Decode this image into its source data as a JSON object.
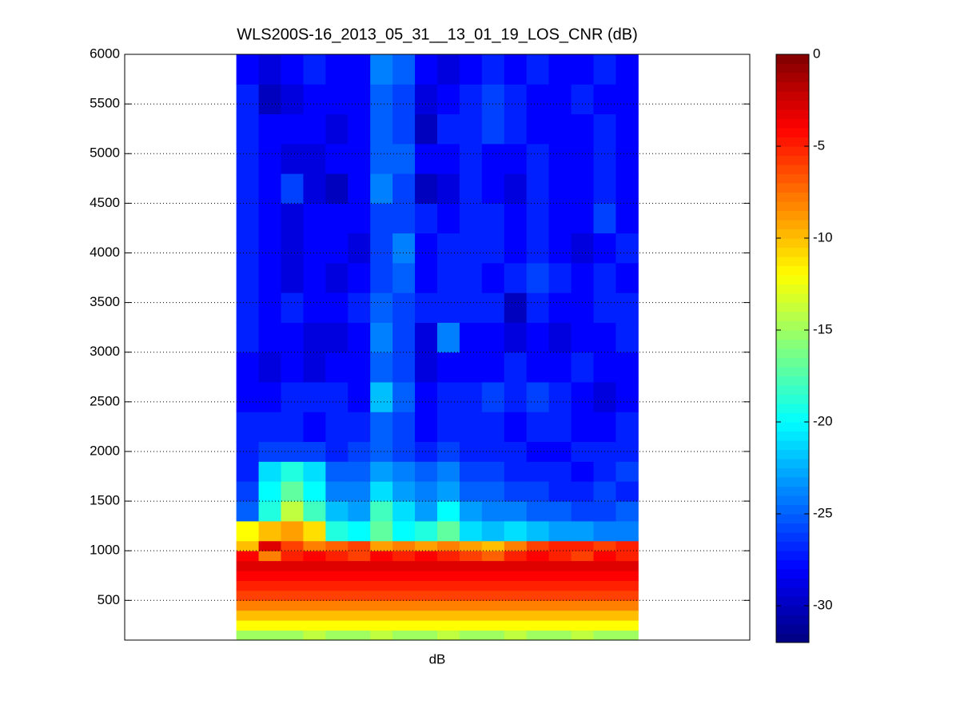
{
  "chart_data": {
    "type": "heatmap",
    "title": "WLS200S-16_2013_05_31__13_01_19_LOS_CNR (dB)",
    "x_label": "dB",
    "x": [
      1,
      2,
      3,
      4,
      5,
      6,
      7,
      8,
      9,
      10,
      11,
      12,
      13,
      14,
      15,
      16,
      17,
      18
    ],
    "xlim": [
      -4.5,
      23.5
    ],
    "y_edges": [
      100,
      200,
      300,
      400,
      500,
      600,
      700,
      800,
      900,
      1000,
      1100,
      1300,
      1500,
      1700,
      1900,
      2100,
      2400,
      2700,
      3000,
      3300,
      3600,
      3900,
      4200,
      4500,
      4800,
      5100,
      5400,
      5700,
      6000
    ],
    "ylim": [
      100,
      6000
    ],
    "yticks": [
      500,
      1000,
      1500,
      2000,
      2500,
      3000,
      3500,
      4000,
      4500,
      5000,
      5500,
      6000
    ],
    "grid": true,
    "colormap": "jet",
    "clim": [
      -32,
      0
    ],
    "colorbar_ticks": [
      0,
      -5,
      -10,
      -15,
      -20,
      -25,
      -30
    ],
    "z": [
      [
        -15,
        -15,
        -15,
        -14,
        -15,
        -15,
        -14,
        -15,
        -15,
        -14,
        -15,
        -15,
        -14,
        -15,
        -15,
        -14,
        -15,
        -15
      ],
      [
        -12,
        -12,
        -12,
        -12,
        -12,
        -12,
        -12,
        -12,
        -12,
        -12,
        -12,
        -12,
        -12,
        -12,
        -12,
        -12,
        -12,
        -12
      ],
      [
        -10,
        -10,
        -10,
        -10,
        -10,
        -10,
        -10,
        -10,
        -10,
        -10,
        -10,
        -10,
        -10,
        -10,
        -10,
        -10,
        -10,
        -10
      ],
      [
        -8,
        -8,
        -8,
        -8,
        -8,
        -8,
        -8,
        -8,
        -8,
        -8,
        -8,
        -8,
        -8,
        -8,
        -8,
        -8,
        -8,
        -8
      ],
      [
        -6,
        -6,
        -6,
        -6,
        -6,
        -6,
        -6,
        -6,
        -6,
        -6,
        -6,
        -6,
        -6,
        -6,
        -6,
        -6,
        -6,
        -6
      ],
      [
        -5,
        -5,
        -5,
        -5,
        -5,
        -5,
        -5,
        -5,
        -5,
        -5,
        -5,
        -5,
        -5,
        -5,
        -5,
        -5,
        -5,
        -5
      ],
      [
        -4,
        -4,
        -4,
        -4,
        -4,
        -4,
        -4,
        -4,
        -4,
        -4,
        -4,
        -4,
        -4,
        -4,
        -4,
        -4,
        -4,
        -4
      ],
      [
        -3,
        -3,
        -3,
        -3,
        -3,
        -3,
        -3,
        -3,
        -3,
        -3,
        -3,
        -3,
        -3,
        -3,
        -3,
        -3,
        -3,
        -3
      ],
      [
        -4,
        -8,
        -5,
        -4,
        -5,
        -6,
        -4,
        -5,
        -4,
        -5,
        -6,
        -7,
        -5,
        -4,
        -5,
        -6,
        -4,
        -5
      ],
      [
        -10,
        -3,
        -6,
        -8,
        -7,
        -6,
        -9,
        -8,
        -9,
        -8,
        -9,
        -10,
        -8,
        -6,
        -5,
        -5,
        -6,
        -5
      ],
      [
        -12,
        -10,
        -9,
        -11,
        -19,
        -20,
        -17,
        -20,
        -19,
        -17,
        -21,
        -22,
        -21,
        -22,
        -23,
        -23,
        -24,
        -24
      ],
      [
        -25,
        -19,
        -14,
        -18,
        -22,
        -23,
        -18,
        -21,
        -23,
        -20,
        -23,
        -24,
        -24,
        -25,
        -25,
        -26,
        -26,
        -25
      ],
      [
        -26,
        -20,
        -17,
        -20,
        -24,
        -24,
        -21,
        -23,
        -24,
        -23,
        -25,
        -25,
        -26,
        -26,
        -27,
        -27,
        -26,
        -27
      ],
      [
        -27,
        -21,
        -19,
        -21,
        -25,
        -25,
        -23,
        -24,
        -25,
        -24,
        -26,
        -26,
        -27,
        -27,
        -27,
        -28,
        -27,
        -26
      ],
      [
        -27,
        -26,
        -26,
        -26,
        -27,
        -26,
        -25,
        -26,
        -27,
        -26,
        -27,
        -27,
        -27,
        -28,
        -28,
        -27,
        -27,
        -27
      ],
      [
        -27,
        -27,
        -27,
        -28,
        -27,
        -27,
        -25,
        -26,
        -28,
        -27,
        -27,
        -27,
        -28,
        -27,
        -27,
        -28,
        -28,
        -27
      ],
      [
        -28,
        -28,
        -27,
        -27,
        -27,
        -28,
        -22,
        -25,
        -28,
        -27,
        -27,
        -26,
        -27,
        -26,
        -27,
        -28,
        -29,
        -28
      ],
      [
        -28,
        -29,
        -28,
        -29,
        -28,
        -28,
        -25,
        -26,
        -29,
        -28,
        -28,
        -28,
        -27,
        -28,
        -28,
        -27,
        -28,
        -28
      ],
      [
        -27,
        -28,
        -28,
        -29,
        -29,
        -28,
        -24,
        -26,
        -29,
        -24,
        -28,
        -28,
        -29,
        -28,
        -29,
        -28,
        -28,
        -27
      ],
      [
        -27,
        -28,
        -27,
        -28,
        -28,
        -27,
        -25,
        -26,
        -27,
        -27,
        -27,
        -27,
        -30,
        -27,
        -28,
        -28,
        -27,
        -27
      ],
      [
        -27,
        -28,
        -29,
        -28,
        -29,
        -28,
        -26,
        -25,
        -28,
        -27,
        -27,
        -28,
        -27,
        -26,
        -27,
        -28,
        -27,
        -28
      ],
      [
        -27,
        -28,
        -29,
        -28,
        -28,
        -29,
        -26,
        -24,
        -28,
        -27,
        -27,
        -27,
        -28,
        -27,
        -28,
        -29,
        -28,
        -27
      ],
      [
        -27,
        -28,
        -29,
        -28,
        -28,
        -28,
        -26,
        -26,
        -27,
        -28,
        -27,
        -27,
        -28,
        -27,
        -28,
        -28,
        -26,
        -28
      ],
      [
        -27,
        -28,
        -26,
        -29,
        -30,
        -28,
        -24,
        -26,
        -30,
        -29,
        -27,
        -28,
        -29,
        -27,
        -28,
        -28,
        -27,
        -28
      ],
      [
        -27,
        -28,
        -29,
        -29,
        -28,
        -28,
        -25,
        -25,
        -28,
        -28,
        -27,
        -28,
        -28,
        -27,
        -28,
        -28,
        -27,
        -28
      ],
      [
        -27,
        -28,
        -28,
        -28,
        -29,
        -28,
        -25,
        -26,
        -30,
        -27,
        -27,
        -26,
        -27,
        -28,
        -28,
        -28,
        -27,
        -28
      ],
      [
        -27,
        -30,
        -29,
        -28,
        -28,
        -28,
        -25,
        -26,
        -29,
        -28,
        -27,
        -26,
        -27,
        -28,
        -28,
        -27,
        -28,
        -28
      ],
      [
        -28,
        -29,
        -28,
        -27,
        -28,
        -28,
        -24,
        -25,
        -28,
        -29,
        -28,
        -27,
        -28,
        -27,
        -28,
        -28,
        -27,
        -28
      ]
    ]
  }
}
